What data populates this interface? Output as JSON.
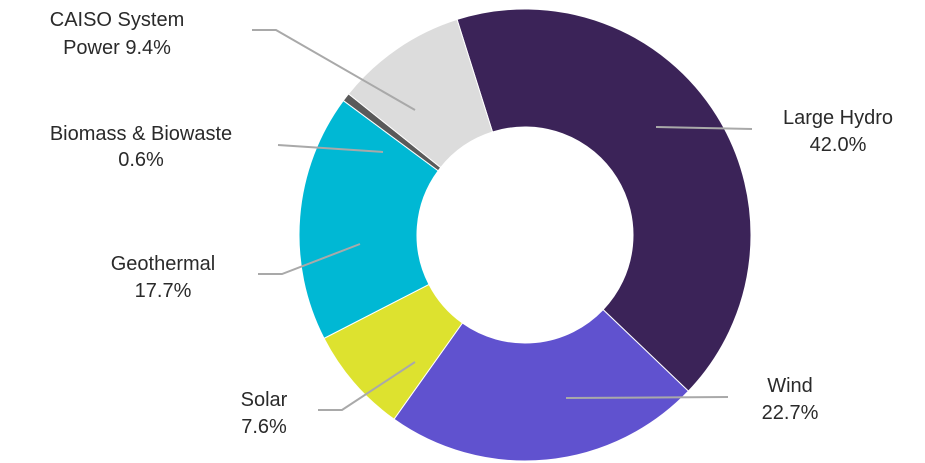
{
  "chart_data": {
    "type": "pie",
    "style": "donut",
    "title": "",
    "start_angle_deg": -17.5,
    "direction": "clockwise",
    "categories": [
      "Large Hydro",
      "Wind",
      "Solar",
      "Geothermal",
      "Biomass & Biowaste",
      "CAISO System Power"
    ],
    "values": [
      42.0,
      22.7,
      7.6,
      17.7,
      0.6,
      9.4
    ],
    "percent_labels": [
      "42.0%",
      "22.7%",
      "7.6%",
      "17.7%",
      "0.6%",
      "9.4%"
    ],
    "label_lines": [
      [
        "Large Hydro",
        "42.0%"
      ],
      [
        "Wind",
        "22.7%"
      ],
      [
        "Solar",
        "7.6%"
      ],
      [
        "Geothermal",
        "17.7%"
      ],
      [
        "Biomass & Biowaste",
        "0.6%"
      ],
      [
        "CAISO System",
        "Power 9.4%"
      ]
    ],
    "colors": [
      "#3b2358",
      "#6052cf",
      "#dde22f",
      "#00b8d4",
      "#5a5a5a",
      "#dcdcdc"
    ],
    "leader_line_color": "#a9a9a9"
  }
}
